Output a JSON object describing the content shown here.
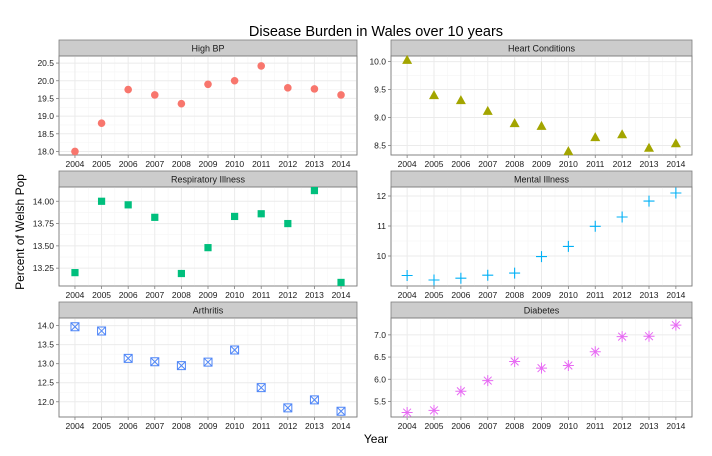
{
  "chart_data": {
    "type": "scatter",
    "title": "Disease Burden in Wales over 10 years",
    "xlabel": "Year",
    "ylabel": "Percent of Welsh Pop",
    "x": [
      2004,
      2005,
      2006,
      2007,
      2008,
      2009,
      2010,
      2011,
      2012,
      2013,
      2014
    ],
    "x_ticks": [
      "2004",
      "2005",
      "2006",
      "2007",
      "2008",
      "2009",
      "2010",
      "2011",
      "2012",
      "2013",
      "2014"
    ],
    "grid": true,
    "legend": "none",
    "panels": [
      {
        "name": "High BP",
        "color": "#f8766d",
        "shape": "circle",
        "ylim": [
          17.9,
          20.7
        ],
        "y_ticks": [
          18.0,
          18.5,
          19.0,
          19.5,
          20.0,
          20.5
        ],
        "y_tick_labels": [
          "18.0",
          "18.5",
          "19.0",
          "19.5",
          "20.0",
          "20.5"
        ],
        "values": [
          18.0,
          18.8,
          19.75,
          19.6,
          19.35,
          19.9,
          20.0,
          20.42,
          19.8,
          19.77,
          19.6
        ]
      },
      {
        "name": "Heart Conditions",
        "color": "#a3a500",
        "shape": "triangle",
        "ylim": [
          8.33,
          10.1
        ],
        "y_ticks": [
          8.5,
          9.0,
          9.5,
          10.0
        ],
        "y_tick_labels": [
          "8.5",
          "9.0",
          "9.5",
          "10.0"
        ],
        "values": [
          10.03,
          9.4,
          9.31,
          9.12,
          8.9,
          8.85,
          8.4,
          8.65,
          8.7,
          8.46,
          8.54
        ]
      },
      {
        "name": "Respiratory Illness",
        "color": "#00bf7d",
        "shape": "square",
        "ylim": [
          13.05,
          14.16
        ],
        "y_ticks": [
          13.25,
          13.5,
          13.75,
          14.0
        ],
        "y_tick_labels": [
          "13.25",
          "13.50",
          "13.75",
          "14.00"
        ],
        "values": [
          13.2,
          14.0,
          13.96,
          13.82,
          13.19,
          13.48,
          13.83,
          13.86,
          13.75,
          14.12,
          13.09
        ]
      },
      {
        "name": "Mental Illness",
        "color": "#00b0f6",
        "shape": "plus",
        "ylim": [
          9.0,
          12.3
        ],
        "y_ticks": [
          10,
          11,
          12
        ],
        "y_tick_labels": [
          "10",
          "11",
          "12"
        ],
        "values": [
          9.35,
          9.2,
          9.26,
          9.36,
          9.43,
          9.98,
          10.32,
          10.99,
          11.3,
          11.83,
          12.1
        ]
      },
      {
        "name": "Arthritis",
        "color": "#4f86f7",
        "shape": "square-x",
        "ylim": [
          11.6,
          14.2
        ],
        "y_ticks": [
          12.0,
          12.5,
          13.0,
          13.5,
          14.0
        ],
        "y_tick_labels": [
          "12.0",
          "12.5",
          "13.0",
          "13.5",
          "14.0"
        ],
        "values": [
          13.97,
          13.86,
          13.14,
          13.05,
          12.95,
          13.04,
          13.36,
          12.37,
          11.84,
          12.05,
          11.75
        ]
      },
      {
        "name": "Diabetes",
        "color": "#e76bf3",
        "shape": "asterisk",
        "ylim": [
          5.15,
          7.38
        ],
        "y_ticks": [
          5.5,
          6.0,
          6.5,
          7.0
        ],
        "y_tick_labels": [
          "5.5",
          "6.0",
          "6.5",
          "7.0"
        ],
        "values": [
          5.25,
          5.3,
          5.73,
          5.97,
          6.4,
          6.25,
          6.31,
          6.62,
          6.96,
          6.97,
          7.22
        ]
      }
    ]
  }
}
